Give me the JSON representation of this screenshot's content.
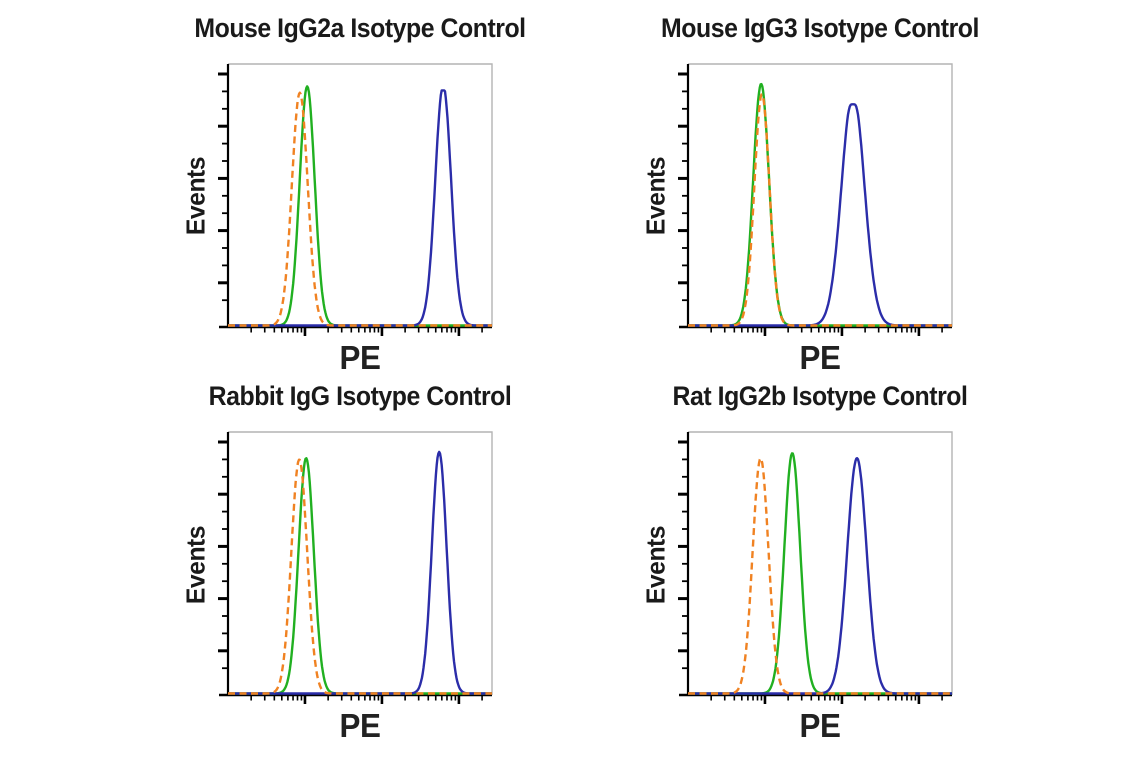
{
  "figure": {
    "background": "#ffffff",
    "description_visible_text_only": true
  },
  "chart_data": {
    "type": "area",
    "subtype": "flow-cytometry-histogram-overlay",
    "layout": "2x2-grid",
    "x_scale": "log",
    "x_decades": 3.43,
    "grid": "off",
    "legend": "none",
    "style": {
      "axis_color": "#000000",
      "frame_color": "#b4b4b4",
      "text_color": "#1a1a1a",
      "green": "#21b021",
      "orange": "#f08222",
      "blue": "#2b2da9"
    },
    "panels": [
      {
        "title": "Mouse IgG2a Isotype Control",
        "xlabel": "PE",
        "ylabel": "Events",
        "series": [
          {
            "name": "green-solid-curve",
            "color": "#21b021",
            "dashed": false,
            "center": 0.3,
            "sigma": 0.0285,
            "height": 0.945,
            "top": "round"
          },
          {
            "name": "blue-solid-curve",
            "color": "#2b2da9",
            "dashed": false,
            "center": 0.815,
            "sigma": 0.03,
            "height": 0.95,
            "top": "flat"
          },
          {
            "name": "orange-dashed-curve",
            "color": "#f08222",
            "dashed": true,
            "center": 0.272,
            "sigma": 0.03,
            "height": 0.92,
            "top": "round"
          }
        ]
      },
      {
        "title": "Mouse IgG3 Isotype Control",
        "xlabel": "PE",
        "ylabel": "Events",
        "series": [
          {
            "name": "green-solid-curve",
            "color": "#21b021",
            "dashed": false,
            "center": 0.277,
            "sigma": 0.03,
            "height": 0.955,
            "top": "round"
          },
          {
            "name": "blue-solid-curve",
            "color": "#2b2da9",
            "dashed": false,
            "center": 0.625,
            "sigma": 0.043,
            "height": 0.925,
            "top": "notch"
          },
          {
            "name": "orange-dashed-curve",
            "color": "#f08222",
            "dashed": true,
            "center": 0.28,
            "sigma": 0.0285,
            "height": 0.915,
            "top": "round"
          }
        ]
      },
      {
        "title": "Rabbit IgG Isotype Control",
        "xlabel": "PE",
        "ylabel": "Events",
        "series": [
          {
            "name": "green-solid-curve",
            "color": "#21b021",
            "dashed": false,
            "center": 0.296,
            "sigma": 0.029,
            "height": 0.93,
            "top": "round"
          },
          {
            "name": "blue-solid-curve",
            "color": "#2b2da9",
            "dashed": false,
            "center": 0.8,
            "sigma": 0.028,
            "height": 0.955,
            "top": "round"
          },
          {
            "name": "orange-dashed-curve",
            "color": "#f08222",
            "dashed": true,
            "center": 0.27,
            "sigma": 0.03,
            "height": 0.925,
            "top": "round"
          }
        ]
      },
      {
        "title": "Rat IgG2b Isotype Control",
        "xlabel": "PE",
        "ylabel": "Events",
        "series": [
          {
            "name": "green-solid-curve",
            "color": "#21b021",
            "dashed": false,
            "center": 0.395,
            "sigma": 0.03,
            "height": 0.95,
            "top": "round"
          },
          {
            "name": "blue-solid-curve",
            "color": "#2b2da9",
            "dashed": false,
            "center": 0.64,
            "sigma": 0.037,
            "height": 0.93,
            "top": "round"
          },
          {
            "name": "orange-dashed-curve",
            "color": "#f08222",
            "dashed": true,
            "center": 0.275,
            "sigma": 0.03,
            "height": 0.93,
            "top": "round"
          }
        ]
      }
    ]
  }
}
